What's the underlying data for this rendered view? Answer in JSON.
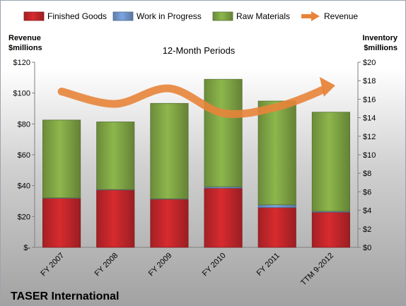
{
  "chart_data": {
    "type": "bar",
    "stacked": true,
    "title": "12-Month Periods",
    "footer": "TASER International",
    "categories": [
      "FY 2007",
      "FY 2008",
      "FY 2009",
      "FY 2010",
      "FY 2011",
      "TTM 9-2012"
    ],
    "left_axis": {
      "label_line1": "Revenue",
      "label_line2": "$millions",
      "min": 0,
      "max": 120,
      "step": 20,
      "ticks": [
        "$-",
        "$20",
        "$40",
        "$60",
        "$80",
        "$100",
        "$120"
      ]
    },
    "right_axis": {
      "label_line1": "Inventory",
      "label_line2": "$millions",
      "min": 0,
      "max": 20,
      "step": 2,
      "ticks": [
        "$0",
        "$2",
        "$4",
        "$6",
        "$8",
        "$10",
        "$12",
        "$14",
        "$16",
        "$18",
        "$20"
      ]
    },
    "series": [
      {
        "name": "Finished Goods",
        "axis": "right",
        "color": "#c0262a",
        "values": [
          5.3,
          6.2,
          5.2,
          6.4,
          4.3,
          3.8
        ]
      },
      {
        "name": "Work in Progress",
        "axis": "right",
        "color": "#6f93c8",
        "values": [
          0.05,
          0.05,
          0.05,
          0.15,
          0.3,
          0.1
        ]
      },
      {
        "name": "Raw Materials",
        "axis": "right",
        "color": "#7ea344",
        "values": [
          8.4,
          7.3,
          10.3,
          11.6,
          11.2,
          10.7
        ]
      },
      {
        "name": "Revenue",
        "axis": "left",
        "type": "line",
        "color": "#e8843a",
        "values": [
          101,
          93,
          103,
          87,
          91,
          104
        ]
      }
    ],
    "grid": false,
    "legend_position": "top"
  }
}
